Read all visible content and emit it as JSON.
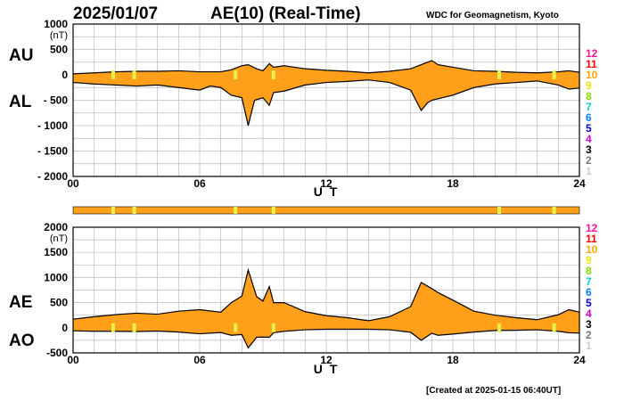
{
  "header": {
    "date": "2025/01/07",
    "title": "AE(10) (Real-Time)",
    "source": "WDC for Geomagnetism, Kyoto",
    "created": "[Created at 2025-01-15 06:40UT]"
  },
  "colors": {
    "fill": "#ff9f1a",
    "line": "#000000",
    "grid": "#bbbbbb",
    "marker": "#e8f04a"
  },
  "level_legend": [
    {
      "label": "12",
      "color": "#ff1493"
    },
    {
      "label": "11",
      "color": "#ff0000"
    },
    {
      "label": "10",
      "color": "#ffa500"
    },
    {
      "label": "9",
      "color": "#e8e800"
    },
    {
      "label": "8",
      "color": "#88dd00"
    },
    {
      "label": "7",
      "color": "#00cccc"
    },
    {
      "label": "6",
      "color": "#0080ff"
    },
    {
      "label": "5",
      "color": "#0000cc"
    },
    {
      "label": "4",
      "color": "#cc00cc"
    },
    {
      "label": "3",
      "color": "#000000"
    },
    {
      "label": "2",
      "color": "#777777"
    },
    {
      "label": "1",
      "color": "#cccccc"
    }
  ],
  "station_bar": {
    "color": "#ff9f1a",
    "marker_hours": [
      1.9,
      2.9,
      7.7,
      9.5,
      20.2,
      22.8
    ]
  },
  "chart_data": [
    {
      "type": "area",
      "name_top": "AU",
      "name_bottom": "AL",
      "ylabel": "(nT)",
      "xlabel": "U T",
      "xlim": [
        0,
        24
      ],
      "ylim": [
        -2000,
        1000
      ],
      "xticks": [
        "00",
        "06",
        "12",
        "18",
        "24"
      ],
      "yticks": [
        "1000",
        "500",
        "0",
        "- 500",
        "- 1000",
        "- 1500",
        "- 2000"
      ],
      "grid": true,
      "upper_series": [
        [
          0,
          20
        ],
        [
          1,
          40
        ],
        [
          2,
          60
        ],
        [
          3,
          70
        ],
        [
          4,
          70
        ],
        [
          5,
          80
        ],
        [
          6,
          60
        ],
        [
          7,
          60
        ],
        [
          7.5,
          100
        ],
        [
          8,
          180
        ],
        [
          8.3,
          200
        ],
        [
          8.7,
          120
        ],
        [
          9,
          80
        ],
        [
          9.3,
          220
        ],
        [
          9.5,
          150
        ],
        [
          10,
          180
        ],
        [
          11,
          120
        ],
        [
          12,
          90
        ],
        [
          13,
          70
        ],
        [
          14,
          40
        ],
        [
          15,
          70
        ],
        [
          16,
          120
        ],
        [
          16.5,
          200
        ],
        [
          17,
          280
        ],
        [
          17.3,
          200
        ],
        [
          18,
          150
        ],
        [
          19,
          80
        ],
        [
          20,
          70
        ],
        [
          21,
          50
        ],
        [
          22,
          40
        ],
        [
          23,
          60
        ],
        [
          23.5,
          80
        ],
        [
          24,
          50
        ]
      ],
      "lower_series": [
        [
          0,
          -150
        ],
        [
          1,
          -180
        ],
        [
          2,
          -200
        ],
        [
          3,
          -220
        ],
        [
          4,
          -200
        ],
        [
          5,
          -250
        ],
        [
          6,
          -300
        ],
        [
          6.5,
          -220
        ],
        [
          7,
          -250
        ],
        [
          7.5,
          -400
        ],
        [
          8,
          -450
        ],
        [
          8.3,
          -1000
        ],
        [
          8.6,
          -500
        ],
        [
          9,
          -450
        ],
        [
          9.3,
          -600
        ],
        [
          9.5,
          -350
        ],
        [
          10,
          -320
        ],
        [
          11,
          -200
        ],
        [
          12,
          -150
        ],
        [
          13,
          -130
        ],
        [
          14,
          -100
        ],
        [
          15,
          -150
        ],
        [
          16,
          -300
        ],
        [
          16.5,
          -700
        ],
        [
          16.8,
          -550
        ],
        [
          17,
          -500
        ],
        [
          18,
          -400
        ],
        [
          19,
          -250
        ],
        [
          20,
          -180
        ],
        [
          21,
          -150
        ],
        [
          22,
          -120
        ],
        [
          23,
          -200
        ],
        [
          23.5,
          -280
        ],
        [
          24,
          -260
        ]
      ]
    },
    {
      "type": "area",
      "name_top": "AE",
      "name_bottom": "AO",
      "ylabel": "(nT)",
      "xlabel": "U T",
      "xlim": [
        0,
        24
      ],
      "ylim": [
        -500,
        2000
      ],
      "xticks": [
        "00",
        "06",
        "12",
        "18",
        "24"
      ],
      "yticks": [
        "2000",
        "1500",
        "1000",
        "500",
        "0",
        "-500"
      ],
      "grid": true,
      "upper_series": [
        [
          0,
          170
        ],
        [
          1,
          220
        ],
        [
          2,
          260
        ],
        [
          3,
          290
        ],
        [
          4,
          270
        ],
        [
          5,
          330
        ],
        [
          6,
          360
        ],
        [
          7,
          310
        ],
        [
          7.5,
          500
        ],
        [
          8,
          630
        ],
        [
          8.3,
          1150
        ],
        [
          8.7,
          620
        ],
        [
          9,
          530
        ],
        [
          9.3,
          820
        ],
        [
          9.5,
          500
        ],
        [
          10,
          500
        ],
        [
          11,
          320
        ],
        [
          12,
          240
        ],
        [
          13,
          200
        ],
        [
          14,
          140
        ],
        [
          15,
          220
        ],
        [
          16,
          420
        ],
        [
          16.5,
          900
        ],
        [
          17,
          780
        ],
        [
          17.3,
          700
        ],
        [
          18,
          550
        ],
        [
          19,
          330
        ],
        [
          20,
          250
        ],
        [
          21,
          200
        ],
        [
          22,
          160
        ],
        [
          23,
          260
        ],
        [
          23.5,
          360
        ],
        [
          24,
          310
        ]
      ],
      "lower_series": [
        [
          0,
          -60
        ],
        [
          1,
          -70
        ],
        [
          2,
          -70
        ],
        [
          3,
          -75
        ],
        [
          4,
          -65
        ],
        [
          5,
          -85
        ],
        [
          6,
          -120
        ],
        [
          7,
          -95
        ],
        [
          7.5,
          -150
        ],
        [
          8,
          -135
        ],
        [
          8.3,
          -400
        ],
        [
          8.7,
          -190
        ],
        [
          9,
          -185
        ],
        [
          9.3,
          -190
        ],
        [
          9.5,
          -100
        ],
        [
          10,
          -70
        ],
        [
          11,
          -40
        ],
        [
          12,
          -30
        ],
        [
          13,
          -30
        ],
        [
          14,
          -30
        ],
        [
          15,
          -40
        ],
        [
          16,
          -90
        ],
        [
          16.5,
          -250
        ],
        [
          17,
          -110
        ],
        [
          17.3,
          -150
        ],
        [
          18,
          -125
        ],
        [
          19,
          -85
        ],
        [
          20,
          -55
        ],
        [
          21,
          -50
        ],
        [
          22,
          -40
        ],
        [
          23,
          -70
        ],
        [
          23.5,
          -100
        ],
        [
          24,
          -105
        ]
      ]
    }
  ]
}
